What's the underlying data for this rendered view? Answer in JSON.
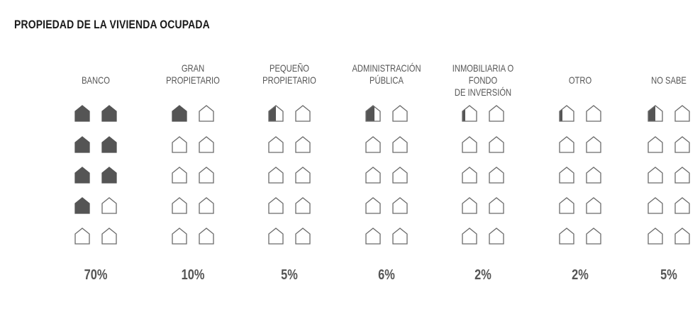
{
  "title": "PROPIEDAD DE LA VIVIENDA OCUPADA",
  "colors": {
    "filled": "#555555",
    "outline": "#6a6a6a",
    "background": "#ffffff"
  },
  "chart_data": {
    "type": "icon-array",
    "title": "PROPIEDAD DE LA VIVIENDA OCUPADA",
    "units_per_icon": 10,
    "icons_per_category": 10,
    "categories": [
      "BANCO",
      "GRAN\nPROPIETARIO",
      "PEQUEÑO\nPROPIETARIO",
      "ADMINISTRACIÓN\nPÚBLICA",
      "INMOBILIARIA O FONDO\nDE INVERSIÓN",
      "OTRO",
      "NO SABE"
    ],
    "values": [
      70,
      10,
      5,
      6,
      2,
      2,
      5
    ],
    "value_labels": [
      "70%",
      "10%",
      "5%",
      "6%",
      "2%",
      "2%",
      "5%"
    ]
  }
}
